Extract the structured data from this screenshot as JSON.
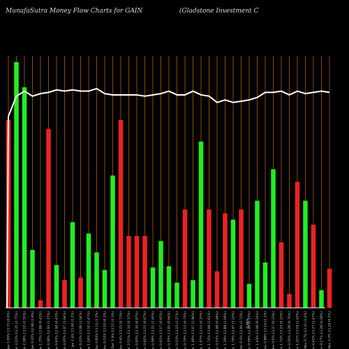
{
  "header": {
    "title_left": "MunafaSutra  Money Flow  Charts for GAIN",
    "title_right": "(Gladstone    Investment C"
  },
  "colors": {
    "background": "#000000",
    "up": "#22ee22",
    "down": "#ee2222",
    "grid": "#b06010",
    "line": "#ffffff",
    "axis": "#ffffff"
  },
  "chart_data": {
    "type": "bar",
    "title": "MunafaSutra  Money Flow  Charts for GAIN",
    "subtitle": "(Gladstone    Investment C",
    "grid": true,
    "categories": [
      "Fri 17 Jan",
      "Thu 16 Jan",
      "Wed 15 Jan",
      "Tue 14 Jan",
      "Mon 13 Jan",
      "Fri 10 Jan",
      "Thu 09 Jan",
      "Wed 08 Jan",
      "Tue 07 Jan",
      "Mon 06 Jan",
      "Fri 03 Jan",
      "Thu 02 Jan",
      "Tue 31 Dec",
      "Mon 30 Dec",
      "Fri 27 Dec",
      "Thu 26 Dec",
      "Tue 24 Dec",
      "Mon 23 Dec",
      "Fri 20 Dec",
      "Thu 19 Dec",
      "Wed 18 Dec",
      "Tue 17 Dec",
      "Mon 16 Dec",
      "Fri 13 Dec",
      "Thu 12 Dec",
      "Wed 11 Dec",
      "Tue 10 Dec",
      "Mon 09 Dec",
      "Fri 06 Dec",
      "Thu 05 Dec",
      "Wed 04 Dec",
      "Tue 03 Dec",
      "Mon 02 Dec",
      "Fri 29 Nov",
      "Wed 27 Nov",
      "Tue 26 Nov",
      "Mon 25 Nov",
      "Fri 22 Nov",
      "Thu 21 Nov",
      "Wed 20 Nov",
      "Tue 19 Nov"
    ],
    "x_labels": [
      "1.05% 13.33 (0.0%)",
      "3.11% 13.35 (2.75%)",
      "2.28% 13.15 (1.55%)",
      "0.35% 12.96 (1.9%)",
      "1.75% 12.88 (0.43%)",
      "0.38% 12.93 (1.15%)",
      "0.43% 12.98 (0.43%)",
      "0.25% 13.07 (1.64%)",
      "1.4% 13.00 (1.2%)",
      "0.33% 13.08 (1.04%)",
      "1.24% 13.10 (1.47%)",
      "0.83% 13.13 (1.2%)",
      "0.53% 13.03 (0.3%)",
      "1.9% 13.15 (1.3%)",
      "0.4% 13.23 (0.73%)",
      "2.51% 13.34 (0.15%)",
      "0.93% 13.30 (0.87%)",
      "0.92% 13.22 (0.67%)",
      "0.58% 13.21 (1.45%)",
      "0.61% 13.17 (0.65%)",
      "0.33% 13.05 (0.64%)",
      "0.33% 13.23 (1.27%)",
      "0.75% 13.12 (0.72%)",
      "1.66% 13.07 (1.96%)",
      "1.07% 13.15 (0.33%)",
      "1.72% 13.08 (1.61%)",
      "0.53% 12.98 (0.48%)",
      "1.29% 12.88 (1.06%)",
      "1.79% 12.97 (1.23%)",
      "0.3% 12.94 (1.73%)",
      "0.56% 12.99 (0.15%)",
      "1.43% 13.08 (0.24%)",
      "0.88% 13.14 (1.1%)",
      "0.5% 13.27 (0.23%)",
      "1.71% 13.23 (0.23%)",
      "0.35% 13.28 (0.76%)",
      "1.21% 13.19 (1.43%)",
      "0.7% 13.31 (1.4%)",
      "0.42% 13.27 (1.47%)",
      "0.17% 13.28 (0.58%)",
      "2.5% 13.29 (0.5%)"
    ],
    "annotation": "0.08%",
    "series": [
      {
        "type": "bar",
        "values": [
          1.49,
          1.95,
          1.75,
          0.46,
          0.06,
          1.42,
          0.34,
          0.22,
          0.68,
          0.24,
          0.59,
          0.44,
          0.3,
          1.05,
          1.49,
          0.57,
          0.57,
          0.57,
          0.32,
          0.53,
          0.33,
          0.2,
          0.78,
          0.22,
          1.32,
          0.78,
          0.29,
          0.75,
          0.7,
          0.78,
          0.19,
          0.85,
          0.36,
          1.1,
          0.52,
          0.11,
          1.0,
          0.85,
          0.66,
          0.14,
          0.31
        ],
        "directions": [
          "down",
          "up",
          "up",
          "up",
          "down",
          "down",
          "up",
          "down",
          "up",
          "down",
          "up",
          "up",
          "up",
          "up",
          "down",
          "down",
          "down",
          "down",
          "up",
          "up",
          "up",
          "up",
          "down",
          "up",
          "up",
          "down",
          "down",
          "down",
          "up",
          "down",
          "up",
          "up",
          "up",
          "up",
          "down",
          "down",
          "down",
          "up",
          "down",
          "up",
          "down"
        ]
      },
      {
        "type": "line",
        "values": [
          1.52,
          1.68,
          1.72,
          1.68,
          1.7,
          1.71,
          1.73,
          1.72,
          1.73,
          1.72,
          1.72,
          1.74,
          1.7,
          1.69,
          1.69,
          1.69,
          1.69,
          1.68,
          1.69,
          1.7,
          1.72,
          1.69,
          1.69,
          1.72,
          1.69,
          1.68,
          1.63,
          1.65,
          1.63,
          1.64,
          1.65,
          1.67,
          1.71,
          1.71,
          1.72,
          1.69,
          1.72,
          1.7,
          1.71,
          1.72,
          1.71
        ]
      }
    ],
    "ylim": [
      0,
      2.0
    ]
  }
}
